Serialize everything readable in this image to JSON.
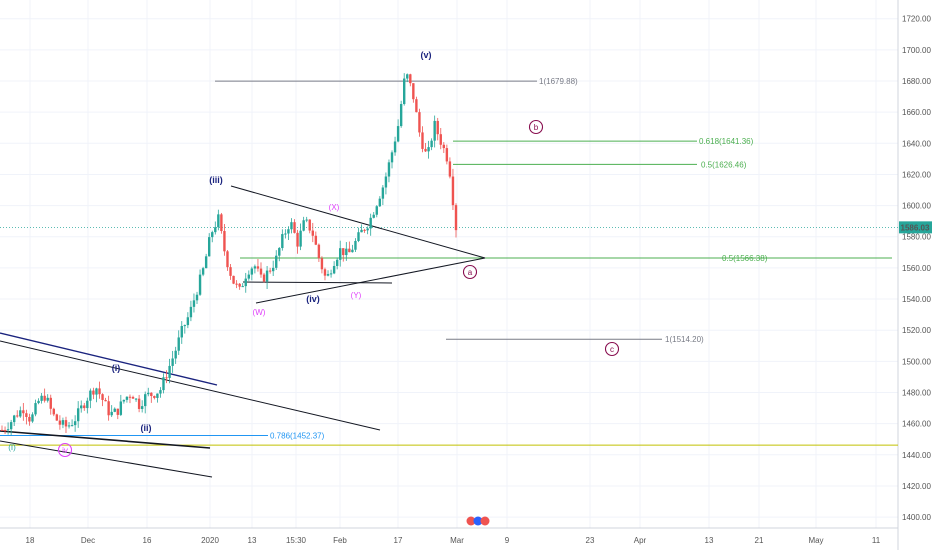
{
  "chart_data": {
    "type": "candlestick",
    "y_ticks": [
      "1400.00",
      "1420.00",
      "1440.00",
      "1460.00",
      "1480.00",
      "1500.00",
      "1520.00",
      "1540.00",
      "1560.00",
      "1580.00",
      "1600.00",
      "1620.00",
      "1640.00",
      "1660.00",
      "1680.00",
      "1700.00",
      "1720.00"
    ],
    "ylim": [
      1393,
      1732
    ],
    "x_labels": [
      "18",
      "Dec",
      "16",
      "2020",
      "13",
      "15:30",
      "Feb",
      "17",
      "Mar",
      "9",
      "23",
      "Apr",
      "13",
      "21",
      "May",
      "11"
    ],
    "last_price": "1586.03",
    "colors": {
      "up": "#26a69a",
      "down": "#ef5350",
      "accent": "#26a69a"
    },
    "price_levels": [
      {
        "label": "1(1679.88)",
        "value": 1679.88,
        "color": "#787b86"
      },
      {
        "label": "0.618(1641.36)",
        "value": 1641.36,
        "color": "#4caf50"
      },
      {
        "label": "0.5(1626.46)",
        "value": 1626.46,
        "color": "#4caf50"
      },
      {
        "label": "0.5(1566.38)",
        "value": 1566.38,
        "color": "#4caf50"
      },
      {
        "label": "1(1514.20)",
        "value": 1514.2,
        "color": "#787b86"
      },
      {
        "label": "0.786(1452.37)",
        "value": 1452.37,
        "color": "#2196f3"
      },
      {
        "label": "",
        "value": 1446.2,
        "color": "#c0c000"
      }
    ],
    "wave_labels": [
      {
        "text": "(v)",
        "color": "#1a237e"
      },
      {
        "text": "(iii)",
        "color": "#1a237e"
      },
      {
        "text": "(iv)",
        "color": "#1a237e"
      },
      {
        "text": "(i)",
        "color": "#1a237e"
      },
      {
        "text": "(ii)",
        "color": "#1a237e"
      },
      {
        "text": "(X)",
        "color": "#e040fb"
      },
      {
        "text": "(W)",
        "color": "#e040fb"
      },
      {
        "text": "(Y)",
        "color": "#e040fb"
      },
      {
        "text": "(I)",
        "color": "#26a69a"
      }
    ],
    "circled_labels": [
      {
        "text": "b",
        "color": "#880e4f"
      },
      {
        "text": "a",
        "color": "#880e4f"
      },
      {
        "text": "c",
        "color": "#880e4f"
      },
      {
        "text": "iv",
        "color": "#e040fb"
      }
    ],
    "price_path": [
      {
        "v": 1456
      },
      {
        "v": 1460
      },
      {
        "v": 1466
      },
      {
        "v": 1470
      },
      {
        "v": 1462
      },
      {
        "v": 1474
      },
      {
        "v": 1478
      },
      {
        "v": 1466
      },
      {
        "v": 1460
      },
      {
        "v": 1458
      },
      {
        "v": 1462
      },
      {
        "v": 1470
      },
      {
        "v": 1478
      },
      {
        "v": 1484
      },
      {
        "v": 1475
      },
      {
        "v": 1466
      },
      {
        "v": 1468
      },
      {
        "v": 1476
      },
      {
        "v": 1480
      },
      {
        "v": 1472
      },
      {
        "v": 1478
      },
      {
        "v": 1479
      },
      {
        "v": 1482
      },
      {
        "v": 1494
      },
      {
        "v": 1506
      },
      {
        "v": 1520
      },
      {
        "v": 1530
      },
      {
        "v": 1545
      },
      {
        "v": 1560
      },
      {
        "v": 1582
      },
      {
        "v": 1592
      },
      {
        "v": 1568
      },
      {
        "v": 1552
      },
      {
        "v": 1545
      },
      {
        "v": 1558
      },
      {
        "v": 1562
      },
      {
        "v": 1552
      },
      {
        "v": 1558
      },
      {
        "v": 1565
      },
      {
        "v": 1580
      },
      {
        "v": 1590
      },
      {
        "v": 1576
      },
      {
        "v": 1590
      },
      {
        "v": 1584
      },
      {
        "v": 1566
      },
      {
        "v": 1552
      },
      {
        "v": 1564
      },
      {
        "v": 1572
      },
      {
        "v": 1568
      },
      {
        "v": 1576
      },
      {
        "v": 1584
      },
      {
        "v": 1590
      },
      {
        "v": 1602
      },
      {
        "v": 1614
      },
      {
        "v": 1632
      },
      {
        "v": 1652
      },
      {
        "v": 1686
      },
      {
        "v": 1672
      },
      {
        "v": 1645
      },
      {
        "v": 1630
      },
      {
        "v": 1652
      },
      {
        "v": 1640
      },
      {
        "v": 1628
      },
      {
        "v": 1586
      }
    ]
  }
}
